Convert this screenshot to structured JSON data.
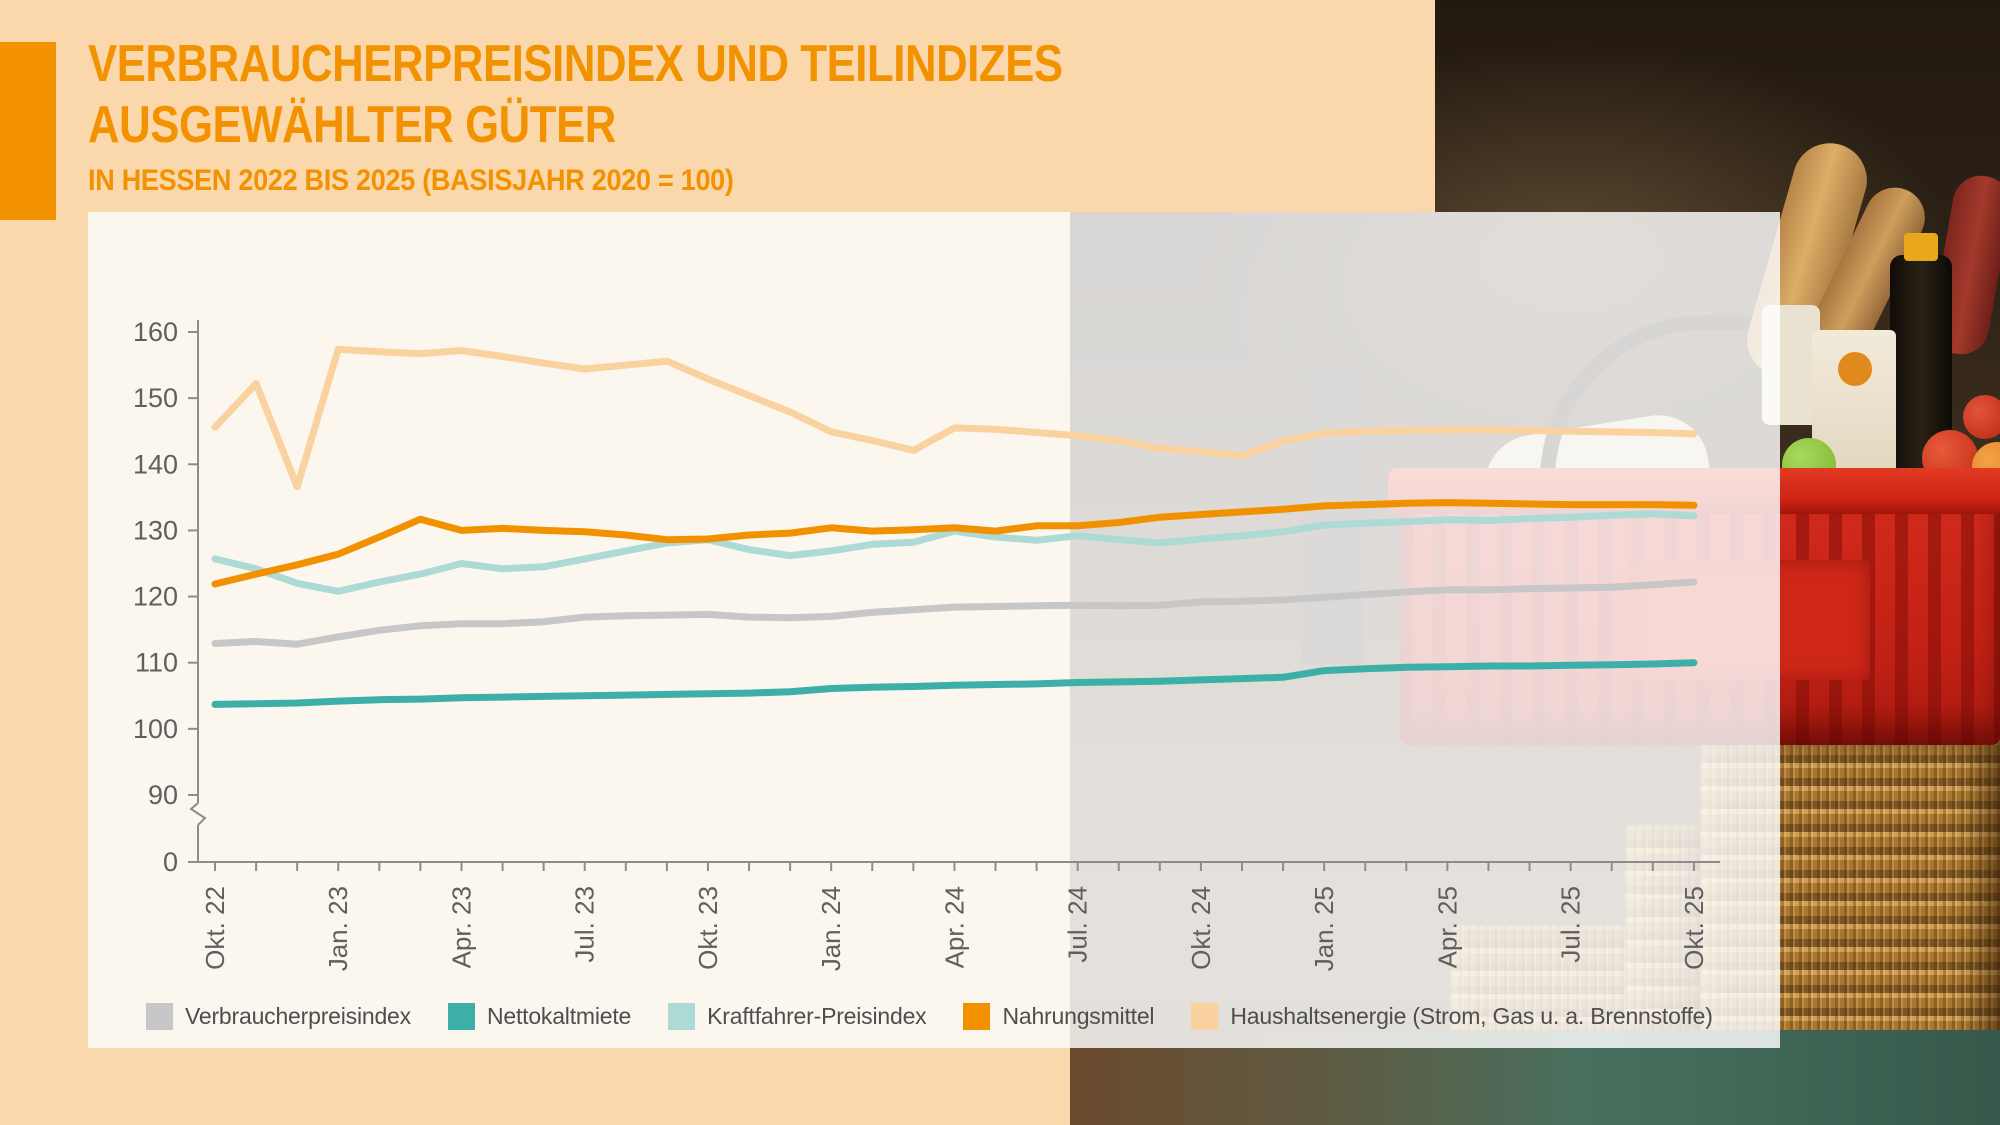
{
  "page": {
    "background_color": "#FAD8AB",
    "panel_color": "#FBF7EF",
    "accent_color": "#F39200"
  },
  "header": {
    "title_line1": "VERBRAUCHERPREISINDEX UND TEILINDIZES",
    "title_line2": "AUSGEWÄHLTER GÜTER",
    "subtitle": "IN HESSEN 2022 BIS 2025 (BASISJAHR 2020 = 100)"
  },
  "photo": {
    "description_items": [
      "shopping-basket",
      "groceries",
      "coin-stacks",
      "table"
    ]
  },
  "chart_data": {
    "type": "line",
    "title": "Verbraucherpreisindex und Teilindizes ausgewählter Güter in Hessen 2022 bis 2025 (Basisjahr 2020 = 100)",
    "axis_color": "#8C8C8C",
    "tick_text_color": "#5F5F5F",
    "ylim": [
      0,
      160
    ],
    "y_axis_break": true,
    "y_ticks": [
      160,
      150,
      140,
      130,
      120,
      110,
      100,
      90,
      0
    ],
    "x_label_every": 3,
    "x_tick_labels_shown": [
      "Okt. 22",
      "Jan. 23",
      "Apr. 23",
      "Jul. 23",
      "Okt. 23",
      "Jan. 24",
      "Apr. 24",
      "Jul. 24",
      "Okt. 24",
      "Jan. 25",
      "Apr. 25",
      "Jul. 25",
      "Okt. 25"
    ],
    "x": [
      "Okt. 22",
      "Nov. 22",
      "Dez. 22",
      "Jan. 23",
      "Feb. 23",
      "Mär. 23",
      "Apr. 23",
      "Mai 23",
      "Jun. 23",
      "Jul. 23",
      "Aug. 23",
      "Sep. 23",
      "Okt. 23",
      "Nov. 23",
      "Dez. 23",
      "Jan. 24",
      "Feb. 24",
      "Mär. 24",
      "Apr. 24",
      "Mai 24",
      "Jun. 24",
      "Jul. 24",
      "Aug. 24",
      "Sep. 24",
      "Okt. 24",
      "Nov. 24",
      "Dez. 24",
      "Jan. 25",
      "Feb. 25",
      "Mär. 25",
      "Apr. 25",
      "Mai 25",
      "Jun. 25",
      "Jul. 25",
      "Aug. 25",
      "Sep. 25",
      "Okt. 25"
    ],
    "draw_order": [
      4,
      0,
      2,
      1,
      3
    ],
    "series": [
      {
        "name": "Verbraucherpreisindex",
        "color": "#C7C7C7",
        "values": [
          112.9,
          113.2,
          112.8,
          113.9,
          114.9,
          115.6,
          115.9,
          115.9,
          116.2,
          116.9,
          117.1,
          117.2,
          117.3,
          116.9,
          116.8,
          117.0,
          117.6,
          118.0,
          118.4,
          118.5,
          118.6,
          118.7,
          118.6,
          118.7,
          119.2,
          119.3,
          119.5,
          119.9,
          120.3,
          120.7,
          121.0,
          121.0,
          121.2,
          121.3,
          121.4,
          121.8,
          122.2
        ]
      },
      {
        "name": "Nettokaltmiete",
        "color": "#3DAFA9",
        "values": [
          103.7,
          103.8,
          103.9,
          104.2,
          104.4,
          104.5,
          104.7,
          104.8,
          104.9,
          105.0,
          105.1,
          105.2,
          105.3,
          105.4,
          105.6,
          106.1,
          106.3,
          106.4,
          106.6,
          106.7,
          106.8,
          107.0,
          107.1,
          107.2,
          107.4,
          107.6,
          107.8,
          108.8,
          109.1,
          109.3,
          109.4,
          109.5,
          109.5,
          109.6,
          109.7,
          109.8,
          110.0
        ]
      },
      {
        "name": "Kraftfahrer-Preisindex",
        "color": "#AEDAD6",
        "values": [
          125.7,
          124.2,
          122.0,
          120.8,
          122.2,
          123.4,
          125.0,
          124.2,
          124.5,
          125.7,
          126.9,
          128.1,
          128.6,
          127.1,
          126.2,
          126.9,
          127.9,
          128.2,
          129.9,
          129.0,
          128.5,
          129.2,
          128.6,
          128.1,
          128.7,
          129.2,
          129.8,
          130.8,
          131.1,
          131.3,
          131.6,
          131.5,
          131.8,
          132.0,
          132.3,
          132.5,
          132.2
        ]
      },
      {
        "name": "Nahrungsmittel",
        "color": "#F29100",
        "values": [
          121.9,
          123.4,
          124.8,
          126.4,
          129.0,
          131.7,
          130.0,
          130.3,
          130.0,
          129.8,
          129.3,
          128.6,
          128.7,
          129.3,
          129.6,
          130.4,
          129.9,
          130.1,
          130.4,
          129.9,
          130.7,
          130.7,
          131.2,
          132.0,
          132.4,
          132.8,
          133.2,
          133.7,
          133.9,
          134.1,
          134.2,
          134.1,
          134.0,
          133.9,
          133.9,
          133.9,
          133.8
        ]
      },
      {
        "name": "Haushaltsenergie (Strom, Gas u. a. Brennstoffe)",
        "color": "#FAD2A0",
        "values": [
          145.6,
          152.2,
          136.6,
          157.4,
          157.0,
          156.7,
          157.2,
          156.3,
          155.3,
          154.4,
          155.0,
          155.6,
          152.9,
          150.4,
          147.9,
          144.9,
          143.6,
          142.1,
          145.5,
          145.3,
          144.8,
          144.3,
          143.6,
          142.4,
          141.9,
          141.3,
          143.5,
          144.7,
          145.0,
          145.1,
          145.2,
          145.2,
          145.1,
          145.0,
          144.9,
          144.8,
          144.6
        ]
      }
    ]
  }
}
